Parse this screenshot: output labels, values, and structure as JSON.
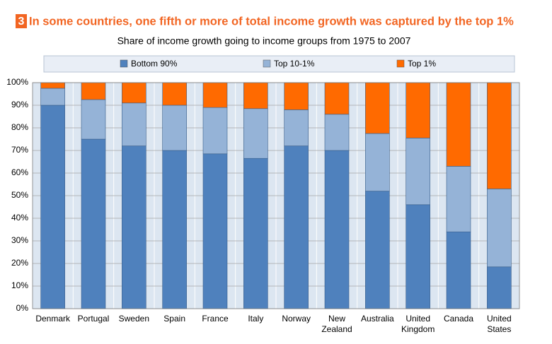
{
  "chart_data": {
    "type": "stacked_bar",
    "figure_number": "3",
    "title": "In some countries, one fifth or more of total income growth was captured by the top 1%",
    "subtitle": "Share of income growth going to income groups from 1975 to 2007",
    "categories": [
      "Denmark",
      "Portugal",
      "Sweden",
      "Spain",
      "France",
      "Italy",
      "Norway",
      "New Zealand",
      "Australia",
      "United Kingdom",
      "Canada",
      "United States"
    ],
    "series": [
      {
        "name": "Bottom 90%",
        "color": "#4f81bd",
        "values": [
          90,
          75,
          72,
          70,
          68.5,
          66.5,
          72,
          70,
          52,
          46,
          34,
          18.5
        ]
      },
      {
        "name": "Top 10-1%",
        "color": "#95b3d7",
        "values": [
          7.5,
          17.5,
          19,
          20,
          20.5,
          22,
          16,
          16,
          25.5,
          29.5,
          29,
          34.5
        ]
      },
      {
        "name": "Top 1%",
        "color": "#ff6a00",
        "values": [
          2.5,
          7.5,
          9,
          10,
          11,
          11.5,
          12,
          14,
          22.5,
          24.5,
          37,
          47
        ]
      }
    ],
    "ylim": [
      0,
      100
    ],
    "yticks": [
      {
        "value": 0,
        "label": "0%"
      },
      {
        "value": 10,
        "label": "10%"
      },
      {
        "value": 20,
        "label": "20%"
      },
      {
        "value": 30,
        "label": "30%"
      },
      {
        "value": 40,
        "label": "40%"
      },
      {
        "value": 50,
        "label": "50%"
      },
      {
        "value": 60,
        "label": "60%"
      },
      {
        "value": 70,
        "label": "70%"
      },
      {
        "value": 80,
        "label": "80%"
      },
      {
        "value": 90,
        "label": "90%"
      },
      {
        "value": 100,
        "label": "100%"
      }
    ],
    "grid": true,
    "legend": "top"
  }
}
